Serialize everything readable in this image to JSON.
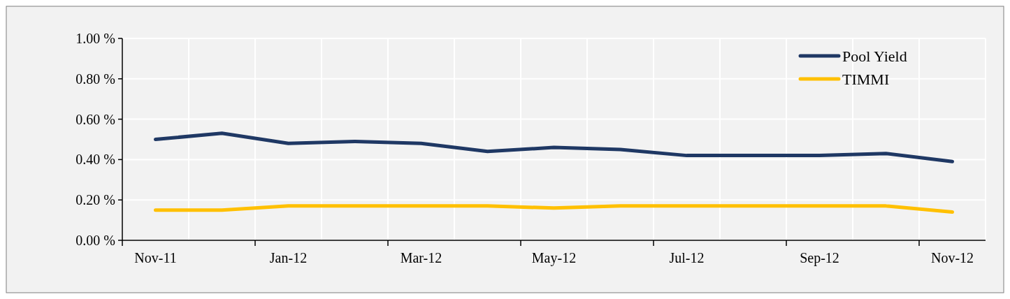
{
  "chart_data": {
    "type": "line",
    "categories": [
      "Nov-11",
      null,
      "Jan-12",
      null,
      "Mar-12",
      null,
      "May-12",
      null,
      "Jul-12",
      null,
      "Sep-12",
      null,
      "Nov-12"
    ],
    "series": [
      {
        "name": "Pool Yield",
        "color": "#1f3864",
        "values": [
          0.5,
          0.53,
          0.48,
          0.49,
          0.48,
          0.44,
          0.46,
          0.45,
          0.42,
          0.42,
          0.42,
          0.43,
          0.39
        ]
      },
      {
        "name": "TIMMI",
        "color": "#ffc000",
        "values": [
          0.15,
          0.15,
          0.17,
          0.17,
          0.17,
          0.17,
          0.16,
          0.17,
          0.17,
          0.17,
          0.17,
          0.17,
          0.14
        ]
      }
    ],
    "ylim": [
      0,
      1
    ],
    "yticks": [
      {
        "value": 0,
        "label": "0.00 %"
      },
      {
        "value": 0.2,
        "label": "0.20 %"
      },
      {
        "value": 0.4,
        "label": "0.40 %"
      },
      {
        "value": 0.6,
        "label": "0.60 %"
      },
      {
        "value": 0.8,
        "label": "0.80 %"
      },
      {
        "value": 1,
        "label": "1.00 %"
      }
    ],
    "grid": true,
    "legend": "top right",
    "marker": "none",
    "line_style": "solid"
  }
}
